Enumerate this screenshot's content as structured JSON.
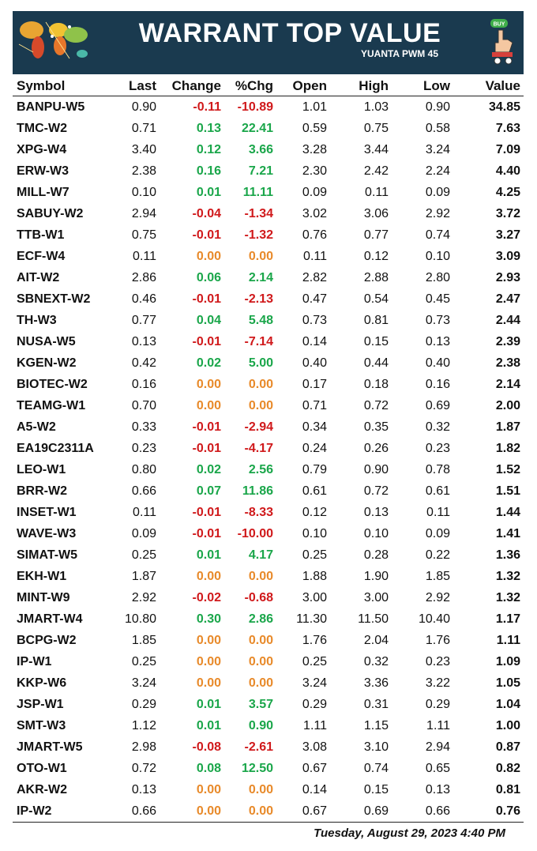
{
  "header": {
    "title": "WARRANT TOP VALUE",
    "subtitle": "YUANTA PWM 45",
    "buy_badge": "BUY"
  },
  "columns": [
    "Symbol",
    "Last",
    "Change",
    "%Chg",
    "Open",
    "High",
    "Low",
    "Value"
  ],
  "colors": {
    "negative": "#d0191b",
    "positive": "#1aa64a",
    "zero": "#e88a2a",
    "banner": "#1a3a4f"
  },
  "rows": [
    {
      "symbol": "BANPU-W5",
      "last": "0.90",
      "change": "-0.11",
      "pct": "-10.89",
      "open": "1.01",
      "high": "1.03",
      "low": "0.90",
      "value": "34.85",
      "dir": "neg"
    },
    {
      "symbol": "TMC-W2",
      "last": "0.71",
      "change": "0.13",
      "pct": "22.41",
      "open": "0.59",
      "high": "0.75",
      "low": "0.58",
      "value": "7.63",
      "dir": "pos"
    },
    {
      "symbol": "XPG-W4",
      "last": "3.40",
      "change": "0.12",
      "pct": "3.66",
      "open": "3.28",
      "high": "3.44",
      "low": "3.24",
      "value": "7.09",
      "dir": "pos"
    },
    {
      "symbol": "ERW-W3",
      "last": "2.38",
      "change": "0.16",
      "pct": "7.21",
      "open": "2.30",
      "high": "2.42",
      "low": "2.24",
      "value": "4.40",
      "dir": "pos"
    },
    {
      "symbol": "MILL-W7",
      "last": "0.10",
      "change": "0.01",
      "pct": "11.11",
      "open": "0.09",
      "high": "0.11",
      "low": "0.09",
      "value": "4.25",
      "dir": "pos"
    },
    {
      "symbol": "SABUY-W2",
      "last": "2.94",
      "change": "-0.04",
      "pct": "-1.34",
      "open": "3.02",
      "high": "3.06",
      "low": "2.92",
      "value": "3.72",
      "dir": "neg"
    },
    {
      "symbol": "TTB-W1",
      "last": "0.75",
      "change": "-0.01",
      "pct": "-1.32",
      "open": "0.76",
      "high": "0.77",
      "low": "0.74",
      "value": "3.27",
      "dir": "neg"
    },
    {
      "symbol": "ECF-W4",
      "last": "0.11",
      "change": "0.00",
      "pct": "0.00",
      "open": "0.11",
      "high": "0.12",
      "low": "0.10",
      "value": "3.09",
      "dir": "zero"
    },
    {
      "symbol": "AIT-W2",
      "last": "2.86",
      "change": "0.06",
      "pct": "2.14",
      "open": "2.82",
      "high": "2.88",
      "low": "2.80",
      "value": "2.93",
      "dir": "pos"
    },
    {
      "symbol": "SBNEXT-W2",
      "last": "0.46",
      "change": "-0.01",
      "pct": "-2.13",
      "open": "0.47",
      "high": "0.54",
      "low": "0.45",
      "value": "2.47",
      "dir": "neg"
    },
    {
      "symbol": "TH-W3",
      "last": "0.77",
      "change": "0.04",
      "pct": "5.48",
      "open": "0.73",
      "high": "0.81",
      "low": "0.73",
      "value": "2.44",
      "dir": "pos"
    },
    {
      "symbol": "NUSA-W5",
      "last": "0.13",
      "change": "-0.01",
      "pct": "-7.14",
      "open": "0.14",
      "high": "0.15",
      "low": "0.13",
      "value": "2.39",
      "dir": "neg"
    },
    {
      "symbol": "KGEN-W2",
      "last": "0.42",
      "change": "0.02",
      "pct": "5.00",
      "open": "0.40",
      "high": "0.44",
      "low": "0.40",
      "value": "2.38",
      "dir": "pos"
    },
    {
      "symbol": "BIOTEC-W2",
      "last": "0.16",
      "change": "0.00",
      "pct": "0.00",
      "open": "0.17",
      "high": "0.18",
      "low": "0.16",
      "value": "2.14",
      "dir": "zero"
    },
    {
      "symbol": "TEAMG-W1",
      "last": "0.70",
      "change": "0.00",
      "pct": "0.00",
      "open": "0.71",
      "high": "0.72",
      "low": "0.69",
      "value": "2.00",
      "dir": "zero"
    },
    {
      "symbol": "A5-W2",
      "last": "0.33",
      "change": "-0.01",
      "pct": "-2.94",
      "open": "0.34",
      "high": "0.35",
      "low": "0.32",
      "value": "1.87",
      "dir": "neg"
    },
    {
      "symbol": "EA19C2311A",
      "last": "0.23",
      "change": "-0.01",
      "pct": "-4.17",
      "open": "0.24",
      "high": "0.26",
      "low": "0.23",
      "value": "1.82",
      "dir": "neg"
    },
    {
      "symbol": "LEO-W1",
      "last": "0.80",
      "change": "0.02",
      "pct": "2.56",
      "open": "0.79",
      "high": "0.90",
      "low": "0.78",
      "value": "1.52",
      "dir": "pos"
    },
    {
      "symbol": "BRR-W2",
      "last": "0.66",
      "change": "0.07",
      "pct": "11.86",
      "open": "0.61",
      "high": "0.72",
      "low": "0.61",
      "value": "1.51",
      "dir": "pos"
    },
    {
      "symbol": "INSET-W1",
      "last": "0.11",
      "change": "-0.01",
      "pct": "-8.33",
      "open": "0.12",
      "high": "0.13",
      "low": "0.11",
      "value": "1.44",
      "dir": "neg"
    },
    {
      "symbol": "WAVE-W3",
      "last": "0.09",
      "change": "-0.01",
      "pct": "-10.00",
      "open": "0.10",
      "high": "0.10",
      "low": "0.09",
      "value": "1.41",
      "dir": "neg"
    },
    {
      "symbol": "SIMAT-W5",
      "last": "0.25",
      "change": "0.01",
      "pct": "4.17",
      "open": "0.25",
      "high": "0.28",
      "low": "0.22",
      "value": "1.36",
      "dir": "pos"
    },
    {
      "symbol": "EKH-W1",
      "last": "1.87",
      "change": "0.00",
      "pct": "0.00",
      "open": "1.88",
      "high": "1.90",
      "low": "1.85",
      "value": "1.32",
      "dir": "zero"
    },
    {
      "symbol": "MINT-W9",
      "last": "2.92",
      "change": "-0.02",
      "pct": "-0.68",
      "open": "3.00",
      "high": "3.00",
      "low": "2.92",
      "value": "1.32",
      "dir": "neg"
    },
    {
      "symbol": "JMART-W4",
      "last": "10.80",
      "change": "0.30",
      "pct": "2.86",
      "open": "11.30",
      "high": "11.50",
      "low": "10.40",
      "value": "1.17",
      "dir": "pos"
    },
    {
      "symbol": "BCPG-W2",
      "last": "1.85",
      "change": "0.00",
      "pct": "0.00",
      "open": "1.76",
      "high": "2.04",
      "low": "1.76",
      "value": "1.11",
      "dir": "zero"
    },
    {
      "symbol": "IP-W1",
      "last": "0.25",
      "change": "0.00",
      "pct": "0.00",
      "open": "0.25",
      "high": "0.32",
      "low": "0.23",
      "value": "1.09",
      "dir": "zero"
    },
    {
      "symbol": "KKP-W6",
      "last": "3.24",
      "change": "0.00",
      "pct": "0.00",
      "open": "3.24",
      "high": "3.36",
      "low": "3.22",
      "value": "1.05",
      "dir": "zero"
    },
    {
      "symbol": "JSP-W1",
      "last": "0.29",
      "change": "0.01",
      "pct": "3.57",
      "open": "0.29",
      "high": "0.31",
      "low": "0.29",
      "value": "1.04",
      "dir": "pos"
    },
    {
      "symbol": "SMT-W3",
      "last": "1.12",
      "change": "0.01",
      "pct": "0.90",
      "open": "1.11",
      "high": "1.15",
      "low": "1.11",
      "value": "1.00",
      "dir": "pos"
    },
    {
      "symbol": "JMART-W5",
      "last": "2.98",
      "change": "-0.08",
      "pct": "-2.61",
      "open": "3.08",
      "high": "3.10",
      "low": "2.94",
      "value": "0.87",
      "dir": "neg"
    },
    {
      "symbol": "OTO-W1",
      "last": "0.72",
      "change": "0.08",
      "pct": "12.50",
      "open": "0.67",
      "high": "0.74",
      "low": "0.65",
      "value": "0.82",
      "dir": "pos"
    },
    {
      "symbol": "AKR-W2",
      "last": "0.13",
      "change": "0.00",
      "pct": "0.00",
      "open": "0.14",
      "high": "0.15",
      "low": "0.13",
      "value": "0.81",
      "dir": "zero"
    },
    {
      "symbol": "IP-W2",
      "last": "0.66",
      "change": "0.00",
      "pct": "0.00",
      "open": "0.67",
      "high": "0.69",
      "low": "0.66",
      "value": "0.76",
      "dir": "zero"
    }
  ],
  "footer": {
    "timestamp": "Tuesday, August 29, 2023  4:40 PM"
  },
  "icons": {
    "left": "world-map-icon",
    "right": "buy-hand-icon"
  }
}
